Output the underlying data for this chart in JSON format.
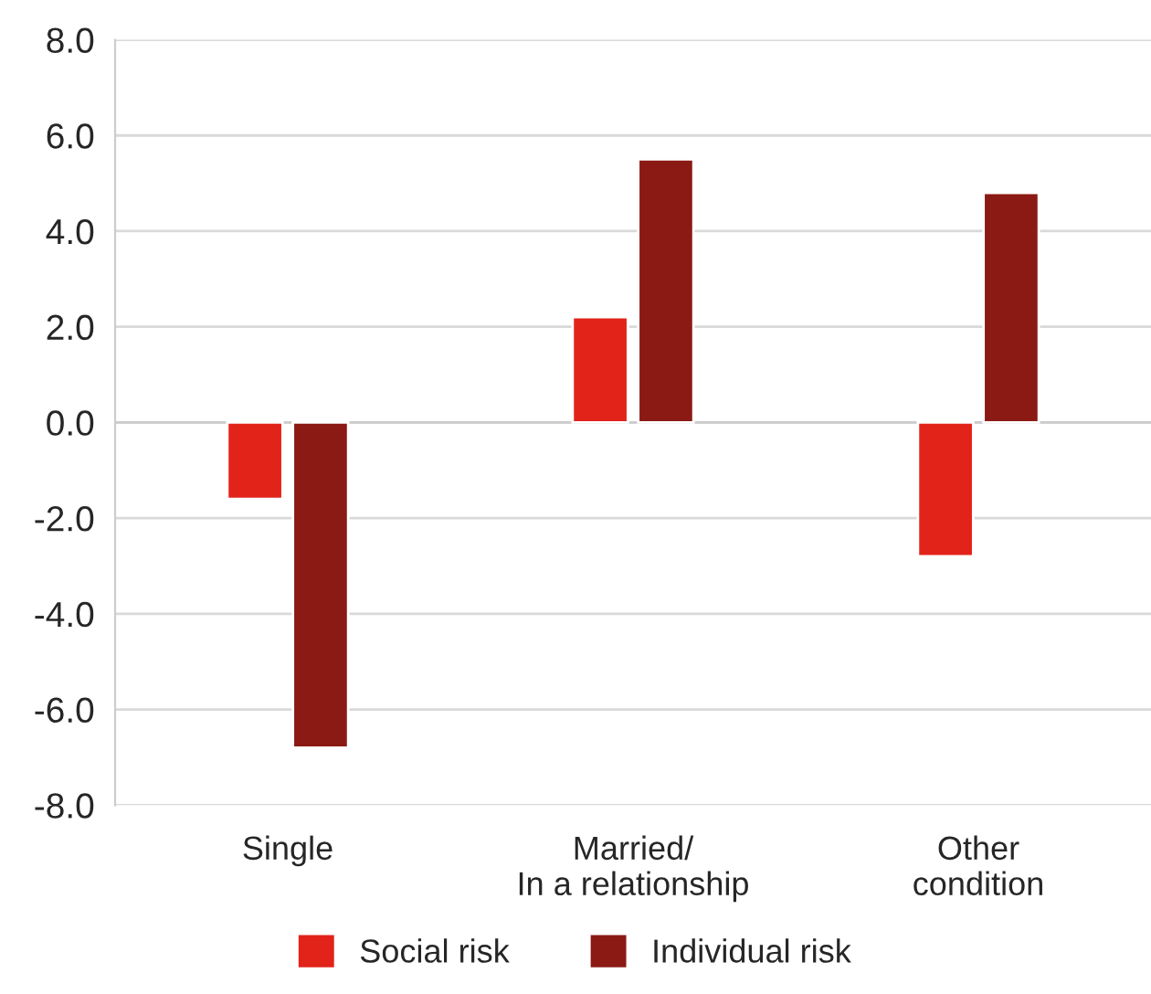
{
  "chart_data": {
    "type": "bar",
    "categories": [
      "Single",
      "Married/\nIn a relationship",
      "Other\ncondition"
    ],
    "series": [
      {
        "name": "Social risk",
        "color": "#e2231a",
        "values": [
          -1.6,
          2.2,
          -2.8
        ]
      },
      {
        "name": "Individual risk",
        "color": "#8b1a14",
        "values": [
          -6.8,
          5.5,
          4.8
        ]
      }
    ],
    "ylim": [
      -8,
      8
    ],
    "yticks": [
      {
        "value": -8,
        "label": "-8.0"
      },
      {
        "value": -6,
        "label": "-6.0"
      },
      {
        "value": -4,
        "label": "-4.0"
      },
      {
        "value": -2,
        "label": "-2.0"
      },
      {
        "value": 0,
        "label": "0.0"
      },
      {
        "value": 2,
        "label": "2.0"
      },
      {
        "value": 4,
        "label": "4.0"
      },
      {
        "value": 6,
        "label": "6.0"
      },
      {
        "value": 8,
        "label": "8.0"
      }
    ],
    "grid": "y",
    "legend": "bottom"
  }
}
